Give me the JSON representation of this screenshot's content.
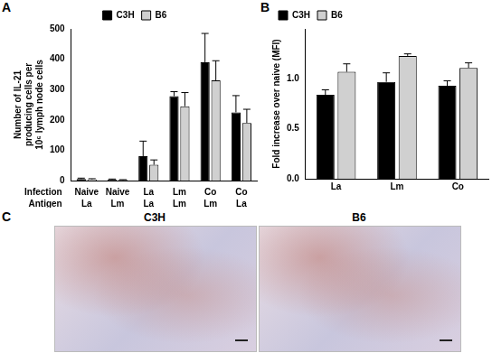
{
  "chart_data": [
    {
      "panel": "A",
      "type": "bar",
      "categories": [
        [
          "Naive",
          "La"
        ],
        [
          "Naive",
          "Lm"
        ],
        [
          "La",
          "La"
        ],
        [
          "Lm",
          "Lm"
        ],
        [
          "Co",
          "Lm"
        ],
        [
          "Co",
          "La"
        ]
      ],
      "category_rows": [
        "Infection",
        "Antigen"
      ],
      "y_label": "Number of IL-21 producing cells per 10⁶ lymph node cells",
      "ylim": [
        0,
        500
      ],
      "yticks": [
        0,
        100,
        200,
        300,
        400,
        500
      ],
      "grid": false,
      "legend": "top",
      "series": [
        {
          "name": "C3H",
          "color": "#000000",
          "values": [
            5,
            3,
            80,
            278,
            390,
            225
          ],
          "errors": [
            3,
            2,
            50,
            15,
            95,
            55
          ]
        },
        {
          "name": "B6",
          "color": "#d0d0d0",
          "values": [
            4,
            2,
            52,
            245,
            330,
            190
          ],
          "errors": [
            2,
            1,
            16,
            45,
            65,
            45
          ]
        }
      ]
    },
    {
      "panel": "B",
      "type": "bar",
      "categories": [
        "La",
        "Lm",
        "Co"
      ],
      "y_label": "Fold increase over naive (MFI)",
      "ylim": [
        0,
        1.5
      ],
      "yticks": [
        {
          "value": 0,
          "label": "0.0"
        },
        {
          "value": 0.5,
          "label": "0.5"
        },
        {
          "value": 1,
          "label": "1.0"
        }
      ],
      "grid": false,
      "legend": "upper left",
      "series": [
        {
          "name": "C3H",
          "color": "#000000",
          "values": [
            0.84,
            0.97,
            0.93
          ],
          "errors": [
            0.05,
            0.09,
            0.05
          ]
        },
        {
          "name": "B6",
          "color": "#d0d0d0",
          "values": [
            1.07,
            1.23,
            1.11
          ],
          "errors": [
            0.08,
            0.02,
            0.05
          ]
        }
      ]
    }
  ],
  "panel_c": {
    "panel": "C",
    "images": [
      "C3H",
      "B6"
    ]
  }
}
